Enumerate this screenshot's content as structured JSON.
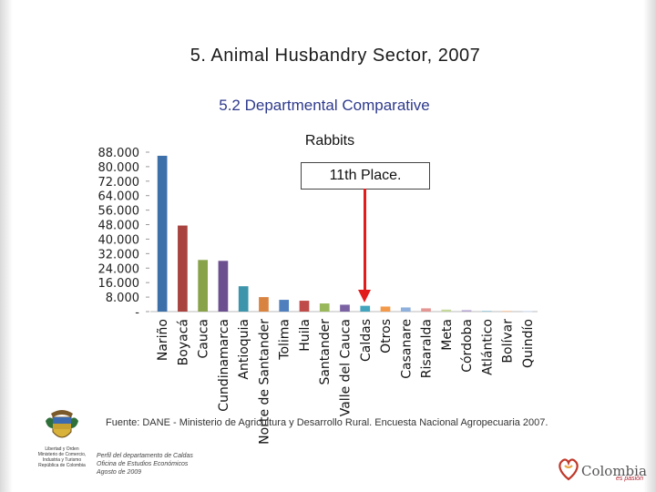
{
  "title": "5. Animal Husbandry Sector, 2007",
  "subtitle": "5.2 Departmental Comparative",
  "callout": "11th Place.",
  "source": "Fuente: DANE - Ministerio de Agricultura y Desarrollo Rural. Encuesta Nacional Agropecuaria 2007.",
  "footer_note": [
    "Perfil del departamento de Caldas",
    "Oficina de Estudios Económicos",
    "Agosto de 2009"
  ],
  "ministry_text": [
    "Libertad y Orden",
    "Ministerio de Comercio,",
    "Industria y Turismo",
    "República de Colombia"
  ],
  "brand": {
    "name": "Colombia",
    "tagline": "es pasión"
  },
  "colors": {
    "title_blue": "#2e3a8c",
    "arrow": "#e21b1b"
  },
  "chart_data": {
    "type": "bar",
    "title": "Rabbits",
    "categories": [
      "Nariño",
      "Boyacá",
      "Cauca",
      "Cundinamarca",
      "Antioquia",
      "Norte de Santander",
      "Tolima",
      "Huila",
      "Santander",
      "Valle del Cauca",
      "Caldas",
      "Otros",
      "Casanare",
      "Risaralda",
      "Meta",
      "Córdoba",
      "Atlántico",
      "Bolívar",
      "Quindío"
    ],
    "values": [
      86000,
      47500,
      28500,
      28000,
      14000,
      8000,
      6500,
      6000,
      4500,
      3800,
      3200,
      2800,
      2300,
      1800,
      1100,
      800,
      500,
      400,
      300
    ],
    "colors": [
      "#3d6fa8",
      "#a8433f",
      "#88a24a",
      "#6c4f8f",
      "#3c95ab",
      "#d98340",
      "#4f7fbd",
      "#bf4c48",
      "#98b85b",
      "#7a62a3",
      "#42a4bd",
      "#f29a4a",
      "#8fb0dc",
      "#e39693",
      "#c4d89b",
      "#b7a6d1",
      "#a6d2e0",
      "#f6c39a",
      "#c6d4ea"
    ],
    "xlabel": "",
    "ylabel": "",
    "ylim": [
      0,
      88000
    ],
    "yticks": [
      "-",
      "8.000",
      "16.000",
      "24.000",
      "32.000",
      "40.000",
      "48.000",
      "56.000",
      "64.000",
      "72.000",
      "80.000",
      "88.000"
    ],
    "grid": false,
    "highlight": "Caldas"
  }
}
